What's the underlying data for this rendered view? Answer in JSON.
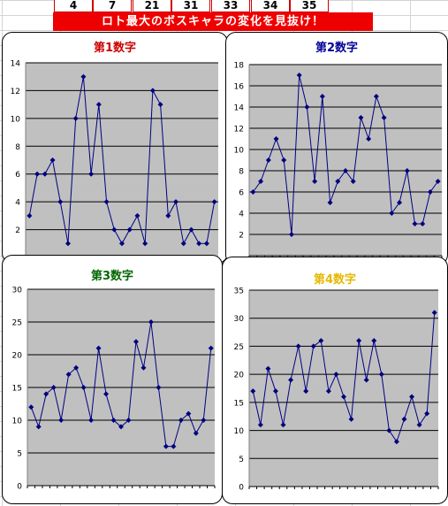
{
  "header": {
    "numbers": [
      "4",
      "7",
      "21",
      "31",
      "33",
      "34",
      "35"
    ],
    "banner": "ロト最大のボスキャラの変化を見抜け！"
  },
  "chart_data": [
    {
      "type": "line",
      "title": "第1数字",
      "title_color": "#cc0000",
      "ylim": [
        0,
        14
      ],
      "yticks": [
        2,
        4,
        6,
        8,
        10,
        12,
        14
      ],
      "grid": true,
      "plot_bg": "#c0c0c0",
      "line_color": "#000080",
      "values": [
        3,
        6,
        6,
        7,
        4,
        1,
        10,
        13,
        6,
        11,
        4,
        2,
        1,
        2,
        3,
        1,
        12,
        11,
        3,
        4,
        1,
        2,
        1,
        1,
        4
      ]
    },
    {
      "type": "line",
      "title": "第2数字",
      "title_color": "#000099",
      "ylim": [
        0,
        18
      ],
      "yticks": [
        2,
        4,
        6,
        8,
        10,
        12,
        14,
        16,
        18
      ],
      "grid": true,
      "plot_bg": "#c0c0c0",
      "line_color": "#000080",
      "values": [
        6,
        7,
        9,
        11,
        9,
        2,
        17,
        14,
        7,
        15,
        5,
        7,
        8,
        7,
        13,
        11,
        15,
        13,
        4,
        5,
        8,
        3,
        3,
        6,
        7
      ]
    },
    {
      "type": "line",
      "title": "第3数字",
      "title_color": "#006600",
      "ylim": [
        0,
        30
      ],
      "yticks": [
        0,
        5,
        10,
        15,
        20,
        25,
        30
      ],
      "grid": true,
      "plot_bg": "#c0c0c0",
      "line_color": "#000080",
      "values": [
        12,
        9,
        14,
        15,
        10,
        17,
        18,
        15,
        10,
        21,
        14,
        10,
        9,
        10,
        22,
        18,
        25,
        15,
        6,
        6,
        10,
        11,
        8,
        10,
        21
      ]
    },
    {
      "type": "line",
      "title": "第4数字",
      "title_color": "#e6b800",
      "ylim": [
        0,
        35
      ],
      "yticks": [
        0,
        5,
        10,
        15,
        20,
        25,
        30,
        35
      ],
      "grid": true,
      "plot_bg": "#c0c0c0",
      "line_color": "#000080",
      "values": [
        17,
        11,
        21,
        17,
        11,
        19,
        25,
        17,
        25,
        26,
        17,
        20,
        16,
        12,
        26,
        19,
        26,
        20,
        10,
        8,
        12,
        16,
        11,
        13,
        31
      ]
    }
  ]
}
